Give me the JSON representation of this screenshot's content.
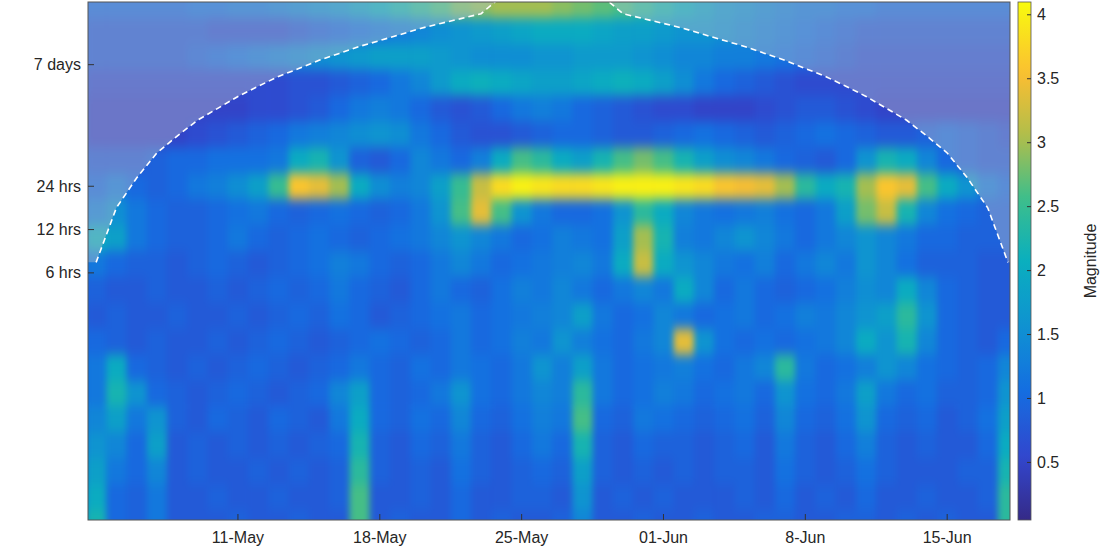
{
  "chart_data": {
    "type": "heatmap",
    "log": "y",
    "x": [
      4,
      5,
      6,
      7,
      8,
      9,
      10,
      11,
      12,
      13,
      14,
      15,
      16,
      17,
      18,
      19,
      20,
      21,
      22,
      23,
      24,
      25,
      26,
      27,
      28,
      29,
      30,
      31,
      32,
      33,
      34,
      35,
      36,
      37,
      38,
      39,
      40,
      41,
      42,
      43,
      44,
      45,
      46,
      47,
      48,
      49
    ],
    "xlim": [
      3.6,
      49.1
    ],
    "xticks": [
      {
        "value": 11,
        "label": "11-May"
      },
      {
        "value": 18,
        "label": "18-May"
      },
      {
        "value": 25,
        "label": "25-May"
      },
      {
        "value": 32,
        "label": "01-Jun"
      },
      {
        "value": 39,
        "label": "8-Jun"
      },
      {
        "value": 46,
        "label": "15-Jun"
      }
    ],
    "y": [
      436,
      288,
      190.5,
      125.9,
      83.2,
      55,
      36.3,
      24,
      15.9,
      10.5,
      6.9,
      4.6,
      3,
      2,
      1.32,
      0.87,
      0.58,
      0.38,
      0.25,
      0.166,
      0.11
    ],
    "ylim": [
      0.115,
      458
    ],
    "yticks": [
      {
        "value": 6,
        "label": "6 hrs"
      },
      {
        "value": 12,
        "label": "12 hrs"
      },
      {
        "value": 24,
        "label": "24 hrs"
      },
      {
        "value": 168,
        "label": "7 days"
      }
    ],
    "cells": [
      [
        1.0,
        1.0,
        1.0,
        1.0,
        1.0,
        1.1,
        1.1,
        1.2,
        1.2,
        1.3,
        1.4,
        1.5,
        1.6,
        1.8,
        2.0,
        2.2,
        2.4,
        2.6,
        2.8,
        2.9,
        3.0,
        3.0,
        3.0,
        2.9,
        2.8,
        2.7,
        2.6,
        2.4,
        2.2,
        2.0,
        1.8,
        1.6,
        1.5,
        1.4,
        1.3,
        1.2,
        1.2,
        1.1,
        1.1,
        1.0,
        1.0,
        1.0,
        1.0,
        1.0,
        1.0,
        1.0
      ],
      [
        0.8,
        0.8,
        0.8,
        0.8,
        0.8,
        0.8,
        0.7,
        0.7,
        0.7,
        0.7,
        0.8,
        0.9,
        1.0,
        1.1,
        1.2,
        1.3,
        1.4,
        1.5,
        1.6,
        1.7,
        1.8,
        1.9,
        2.0,
        2.0,
        2.0,
        1.9,
        1.8,
        1.8,
        1.7,
        1.6,
        1.6,
        1.5,
        1.4,
        1.3,
        1.2,
        1.1,
        1.0,
        0.9,
        0.8,
        0.8,
        0.8,
        0.8,
        0.8,
        0.8,
        0.8,
        0.8
      ],
      [
        0.8,
        0.8,
        0.8,
        0.8,
        0.8,
        0.9,
        1.0,
        1.1,
        1.2,
        1.3,
        1.4,
        1.5,
        1.6,
        1.7,
        1.8,
        1.8,
        1.8,
        1.7,
        1.6,
        1.5,
        1.5,
        1.5,
        1.6,
        1.6,
        1.7,
        1.7,
        1.7,
        1.6,
        1.5,
        1.4,
        1.4,
        1.3,
        1.3,
        1.2,
        1.1,
        1.0,
        0.9,
        0.8,
        0.7,
        0.7,
        0.7,
        0.7,
        0.7,
        0.7,
        0.7,
        0.7
      ],
      [
        0.6,
        0.6,
        0.6,
        0.6,
        0.6,
        0.6,
        0.6,
        0.6,
        0.6,
        0.6,
        0.7,
        0.7,
        0.8,
        0.9,
        1.0,
        1.2,
        1.4,
        1.7,
        2.0,
        2.1,
        2.0,
        1.9,
        1.8,
        1.8,
        1.9,
        2.0,
        2.1,
        2.0,
        1.8,
        1.5,
        1.2,
        1.0,
        0.9,
        0.8,
        0.7,
        0.6,
        0.6,
        0.6,
        0.6,
        0.6,
        0.6,
        0.6,
        0.6,
        0.6,
        0.6,
        0.6
      ],
      [
        0.5,
        0.5,
        0.5,
        0.5,
        0.5,
        0.5,
        0.5,
        0.5,
        0.6,
        0.6,
        0.7,
        0.8,
        1.0,
        1.2,
        1.3,
        1.2,
        1.0,
        0.8,
        0.7,
        0.8,
        1.0,
        1.2,
        1.3,
        1.2,
        1.0,
        0.9,
        0.8,
        0.7,
        0.6,
        0.6,
        0.5,
        0.5,
        0.5,
        0.6,
        0.7,
        0.8,
        0.8,
        0.7,
        0.6,
        0.5,
        0.5,
        0.5,
        0.5,
        0.5,
        0.5,
        0.5
      ],
      [
        0.5,
        0.5,
        0.5,
        0.5,
        0.5,
        0.6,
        0.7,
        0.8,
        0.9,
        1.0,
        1.2,
        1.3,
        1.4,
        1.5,
        1.6,
        1.5,
        1.2,
        1.0,
        0.8,
        0.7,
        0.7,
        0.8,
        0.9,
        1.0,
        1.0,
        0.9,
        0.8,
        0.8,
        0.9,
        1.0,
        1.1,
        1.0,
        0.9,
        0.8,
        0.9,
        1.0,
        1.1,
        1.0,
        0.9,
        0.8,
        0.8,
        0.9,
        1.0,
        0.9,
        0.8,
        0.7
      ],
      [
        0.8,
        0.8,
        0.8,
        0.9,
        1.0,
        1.0,
        1.1,
        1.1,
        1.1,
        1.2,
        2.0,
        2.2,
        1.6,
        0.9,
        0.8,
        1.0,
        1.4,
        1.2,
        1.0,
        1.3,
        2.0,
        2.6,
        2.4,
        2.0,
        1.8,
        2.2,
        2.6,
        2.8,
        2.6,
        2.2,
        1.8,
        1.5,
        1.4,
        1.2,
        1.0,
        0.9,
        0.8,
        1.0,
        1.6,
        2.2,
        2.0,
        1.4,
        1.0,
        0.9,
        0.8,
        0.8
      ],
      [
        1.0,
        1.2,
        1.0,
        0.9,
        1.0,
        1.2,
        1.3,
        1.5,
        1.8,
        2.5,
        3.6,
        3.4,
        3.0,
        2.0,
        1.5,
        1.3,
        1.4,
        1.8,
        2.5,
        3.2,
        3.8,
        4.0,
        3.9,
        3.8,
        3.8,
        3.9,
        4.0,
        4.0,
        4.0,
        3.9,
        3.8,
        3.6,
        3.5,
        3.4,
        3.0,
        2.4,
        2.0,
        2.2,
        3.0,
        3.6,
        3.4,
        2.6,
        2.0,
        1.6,
        1.2,
        1.0
      ],
      [
        1.3,
        1.5,
        1.2,
        1.0,
        0.9,
        0.9,
        1.0,
        1.1,
        1.2,
        1.0,
        0.9,
        1.0,
        1.1,
        1.0,
        0.9,
        1.0,
        1.2,
        1.6,
        2.6,
        3.4,
        2.6,
        1.6,
        1.2,
        1.0,
        1.0,
        1.1,
        1.6,
        2.4,
        2.0,
        1.4,
        1.2,
        1.1,
        1.2,
        1.3,
        1.1,
        1.0,
        1.2,
        1.8,
        2.8,
        3.2,
        2.2,
        1.4,
        1.1,
        1.0,
        0.9,
        0.9
      ],
      [
        2.0,
        1.8,
        1.2,
        1.0,
        0.9,
        0.9,
        1.0,
        1.2,
        1.0,
        0.9,
        1.0,
        1.1,
        1.0,
        0.9,
        1.0,
        1.1,
        1.2,
        1.4,
        1.6,
        1.4,
        1.2,
        1.0,
        1.1,
        1.3,
        1.2,
        1.1,
        1.8,
        3.0,
        2.2,
        1.3,
        1.2,
        1.4,
        1.6,
        1.4,
        1.2,
        1.0,
        1.2,
        1.4,
        1.6,
        1.4,
        1.2,
        1.0,
        1.0,
        0.9,
        0.9,
        0.9
      ],
      [
        1.2,
        1.0,
        0.9,
        0.9,
        0.8,
        0.9,
        1.0,
        0.9,
        0.8,
        0.9,
        1.0,
        1.1,
        1.3,
        1.2,
        1.0,
        0.9,
        1.0,
        1.2,
        1.4,
        1.2,
        1.0,
        1.1,
        1.2,
        1.3,
        1.4,
        1.2,
        2.0,
        3.2,
        2.0,
        1.6,
        1.4,
        1.2,
        1.1,
        1.3,
        1.0,
        1.2,
        1.4,
        1.2,
        1.6,
        1.4,
        1.1,
        0.9,
        0.9,
        0.9,
        0.8,
        0.8
      ],
      [
        0.9,
        0.8,
        0.8,
        0.9,
        0.8,
        0.8,
        0.9,
        0.8,
        0.9,
        1.0,
        0.9,
        1.0,
        1.2,
        1.0,
        0.9,
        0.8,
        1.0,
        1.2,
        1.0,
        0.9,
        1.1,
        1.3,
        1.2,
        1.4,
        1.2,
        1.0,
        1.2,
        1.4,
        1.2,
        2.0,
        1.4,
        1.0,
        1.2,
        1.0,
        0.9,
        1.0,
        1.1,
        1.3,
        1.5,
        1.4,
        2.0,
        1.4,
        1.0,
        0.9,
        0.8,
        0.8
      ],
      [
        0.8,
        0.9,
        0.8,
        0.8,
        0.9,
        0.8,
        0.8,
        0.9,
        0.8,
        0.9,
        1.0,
        0.9,
        1.1,
        1.0,
        0.8,
        0.9,
        1.0,
        1.1,
        1.2,
        1.0,
        1.1,
        1.2,
        1.3,
        1.4,
        1.8,
        1.2,
        1.0,
        1.1,
        1.4,
        1.2,
        1.0,
        1.1,
        1.2,
        1.0,
        1.1,
        1.3,
        1.2,
        1.4,
        1.6,
        1.8,
        2.4,
        1.6,
        1.0,
        0.9,
        0.8,
        0.8
      ],
      [
        1.0,
        0.9,
        0.8,
        0.9,
        0.8,
        0.8,
        0.9,
        0.8,
        0.9,
        1.0,
        0.9,
        0.8,
        0.9,
        1.0,
        1.1,
        1.0,
        0.9,
        1.0,
        1.2,
        1.0,
        1.1,
        1.3,
        1.2,
        1.6,
        1.3,
        1.1,
        1.0,
        1.2,
        1.4,
        3.4,
        1.6,
        1.1,
        1.0,
        1.1,
        1.0,
        1.1,
        1.2,
        1.4,
        2.0,
        1.6,
        2.2,
        1.4,
        1.0,
        0.9,
        0.8,
        1.0
      ],
      [
        1.2,
        2.0,
        1.0,
        0.9,
        0.8,
        0.9,
        0.8,
        0.9,
        1.0,
        0.9,
        0.8,
        0.9,
        1.0,
        1.2,
        1.0,
        0.9,
        1.1,
        1.0,
        1.2,
        1.1,
        1.0,
        1.2,
        1.6,
        1.3,
        1.8,
        1.2,
        1.0,
        1.1,
        1.2,
        1.3,
        1.1,
        1.0,
        1.2,
        1.4,
        2.4,
        1.2,
        1.0,
        1.1,
        1.3,
        1.6,
        1.4,
        1.1,
        1.0,
        0.9,
        1.0,
        1.4
      ],
      [
        1.2,
        2.2,
        1.6,
        1.0,
        0.9,
        0.8,
        0.9,
        1.0,
        0.9,
        0.8,
        0.9,
        1.0,
        1.4,
        1.8,
        1.0,
        0.9,
        1.0,
        1.2,
        1.6,
        1.1,
        1.0,
        1.2,
        1.4,
        1.3,
        2.4,
        1.2,
        1.0,
        1.1,
        1.3,
        1.2,
        1.0,
        1.1,
        1.2,
        1.0,
        1.6,
        1.1,
        1.0,
        1.2,
        1.8,
        1.2,
        1.0,
        1.1,
        0.9,
        0.9,
        1.0,
        1.6
      ],
      [
        1.4,
        1.8,
        1.2,
        1.6,
        0.9,
        0.8,
        1.0,
        0.9,
        0.8,
        1.0,
        0.9,
        0.8,
        1.2,
        2.0,
        1.0,
        0.9,
        1.1,
        1.0,
        1.4,
        1.0,
        0.9,
        1.1,
        1.3,
        1.2,
        2.6,
        1.0,
        0.9,
        1.2,
        1.1,
        1.0,
        0.9,
        1.0,
        1.1,
        0.9,
        1.4,
        1.0,
        0.9,
        1.1,
        1.6,
        1.0,
        0.9,
        1.0,
        0.8,
        0.9,
        1.1,
        1.8
      ],
      [
        1.6,
        1.4,
        1.0,
        1.8,
        0.8,
        0.9,
        0.8,
        0.9,
        0.8,
        0.9,
        0.8,
        0.9,
        1.0,
        2.2,
        0.9,
        0.8,
        1.0,
        0.9,
        1.2,
        0.9,
        0.8,
        1.0,
        1.2,
        1.0,
        2.2,
        0.9,
        0.8,
        1.0,
        0.9,
        0.9,
        0.8,
        0.9,
        1.0,
        0.8,
        1.2,
        0.9,
        0.8,
        1.0,
        1.3,
        0.9,
        0.8,
        0.9,
        0.8,
        0.8,
        1.0,
        2.0
      ],
      [
        1.8,
        1.2,
        1.0,
        1.4,
        0.8,
        0.9,
        0.8,
        0.8,
        0.9,
        0.8,
        0.9,
        0.8,
        0.9,
        2.4,
        0.9,
        0.8,
        0.9,
        0.8,
        1.1,
        0.9,
        0.8,
        0.9,
        1.0,
        0.9,
        1.8,
        0.9,
        0.8,
        0.9,
        0.8,
        0.9,
        0.8,
        0.9,
        0.9,
        0.8,
        1.1,
        0.9,
        0.8,
        0.9,
        1.1,
        0.9,
        0.8,
        0.8,
        0.8,
        0.9,
        0.9,
        2.2
      ],
      [
        2.0,
        1.0,
        0.9,
        1.2,
        0.8,
        0.8,
        0.9,
        0.8,
        0.8,
        0.9,
        0.8,
        0.8,
        0.9,
        2.6,
        0.8,
        0.8,
        0.9,
        0.8,
        1.0,
        0.8,
        0.8,
        0.9,
        0.9,
        0.8,
        1.6,
        0.8,
        0.9,
        0.8,
        0.9,
        0.8,
        0.8,
        0.8,
        0.9,
        0.8,
        1.0,
        0.8,
        0.9,
        0.8,
        1.0,
        0.8,
        0.8,
        0.9,
        0.8,
        0.8,
        0.9,
        2.4
      ],
      [
        2.2,
        1.0,
        0.9,
        1.2,
        0.8,
        0.8,
        0.8,
        0.9,
        0.8,
        0.8,
        0.9,
        0.8,
        0.8,
        2.6,
        0.8,
        0.9,
        0.8,
        0.8,
        1.0,
        0.8,
        0.9,
        0.8,
        0.8,
        0.9,
        1.4,
        0.8,
        0.8,
        0.9,
        0.8,
        0.8,
        0.9,
        0.8,
        0.8,
        0.9,
        0.9,
        0.8,
        0.8,
        0.9,
        0.9,
        0.8,
        0.9,
        0.8,
        0.9,
        0.8,
        0.8,
        2.4
      ]
    ],
    "cone_of_influence": [
      7.1,
      17.0,
      27.4,
      40.9,
      53.6,
      69,
      83.5,
      101,
      119,
      139,
      158,
      180,
      201,
      225,
      247,
      272,
      300,
      325,
      351,
      380,
      500,
      500,
      500,
      500,
      500,
      500,
      380,
      351,
      325,
      300,
      272,
      247,
      225,
      201,
      180,
      158,
      139,
      119,
      101,
      83.5,
      69,
      53.6,
      40.9,
      27.4,
      17.0,
      7.1
    ],
    "clim": [
      0.05,
      4.1
    ],
    "cticks": [
      0.5,
      1,
      1.5,
      2,
      2.5,
      3,
      3.5,
      4
    ],
    "colorbar_label": "Magnitude"
  }
}
